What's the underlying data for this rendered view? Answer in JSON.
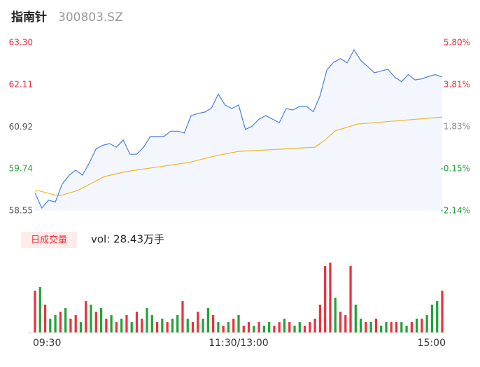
{
  "chart_data": {
    "type": "intraday",
    "title": "指南针",
    "subtitle": "300803.SZ",
    "xlim": [
      0,
      240
    ],
    "xticks": [
      {
        "value": 0,
        "label": "09:30"
      },
      {
        "value": 120,
        "label": "11:30/13:00"
      },
      {
        "value": 240,
        "label": "15:00"
      }
    ],
    "ylim": [
      58.55,
      63.3
    ],
    "yticks": [
      {
        "value": 63.3,
        "label": "63.30"
      },
      {
        "value": 62.11,
        "label": "62.11"
      },
      {
        "value": 60.92,
        "label": "60.92"
      },
      {
        "value": 59.74,
        "label": "59.74"
      },
      {
        "value": 58.55,
        "label": "58.55"
      }
    ],
    "ytick_colors": [
      "#e8323c",
      "#e8323c",
      "#555555",
      "#21a336",
      "#555555"
    ],
    "y2lim": [
      -2.14,
      5.8
    ],
    "y2ticks": [
      {
        "value": 5.8,
        "label": "5.80%"
      },
      {
        "value": 3.81,
        "label": "3.81%"
      },
      {
        "value": 1.83,
        "label": "1.83%"
      },
      {
        "value": -0.15,
        "label": "-0.15%"
      },
      {
        "value": -2.14,
        "label": "-2.14%"
      }
    ],
    "y2tick_colors": [
      "#e8323c",
      "#e8323c",
      "#888888",
      "#21a336",
      "#21a336"
    ],
    "series": [
      {
        "color": "#4a7fe0",
        "fill": "#f3f7fd",
        "x": [
          0,
          4,
          8,
          12,
          16,
          20,
          24,
          28,
          32,
          36,
          40,
          44,
          48,
          52,
          56,
          60,
          64,
          68,
          72,
          76,
          80,
          84,
          88,
          92,
          96,
          100,
          104,
          108,
          112,
          116,
          120,
          124,
          128,
          132,
          136,
          140,
          144,
          148,
          152,
          156,
          160,
          164,
          168,
          172,
          176,
          180,
          184,
          188,
          192,
          196,
          200,
          204,
          208,
          212,
          216,
          220,
          224,
          228,
          232,
          236,
          240
        ],
        "values": [
          59.06,
          58.63,
          58.85,
          58.8,
          59.3,
          59.55,
          59.7,
          59.56,
          59.9,
          60.3,
          60.4,
          60.45,
          60.35,
          60.55,
          60.15,
          60.15,
          60.35,
          60.65,
          60.65,
          60.65,
          60.8,
          60.8,
          60.75,
          61.24,
          61.3,
          61.34,
          61.45,
          61.85,
          61.54,
          61.44,
          61.54,
          60.85,
          60.94,
          61.14,
          61.24,
          61.14,
          61.04,
          61.44,
          61.4,
          61.5,
          61.5,
          61.35,
          61.8,
          62.53,
          62.75,
          62.85,
          62.73,
          63.1,
          62.8,
          62.63,
          62.45,
          62.5,
          62.55,
          62.33,
          62.2,
          62.4,
          62.25,
          62.28,
          62.35,
          62.4,
          62.33
        ]
      },
      {
        "color": "#f0b429",
        "x": [
          0,
          2,
          14,
          25,
          33,
          41,
          54,
          74,
          91,
          107,
          120,
          144,
          165,
          171,
          177,
          190,
          210,
          240
        ],
        "values": [
          59.1,
          59.12,
          58.97,
          59.12,
          59.32,
          59.52,
          59.66,
          59.8,
          59.92,
          60.11,
          60.23,
          60.29,
          60.35,
          60.55,
          60.81,
          61.0,
          61.08,
          61.2
        ]
      }
    ],
    "volume": {
      "label": "日成交量",
      "text": "vol: 28.43万手",
      "ylim": [
        0,
        125
      ],
      "x": [
        0,
        3,
        6,
        9,
        12,
        15,
        18,
        21,
        24,
        27,
        30,
        33,
        36,
        39,
        42,
        45,
        48,
        51,
        54,
        57,
        60,
        63,
        66,
        69,
        72,
        75,
        78,
        81,
        84,
        87,
        90,
        93,
        96,
        99,
        102,
        105,
        108,
        111,
        114,
        117,
        120,
        123,
        126,
        129,
        132,
        135,
        138,
        141,
        144,
        147,
        150,
        153,
        156,
        159,
        162,
        165,
        168,
        171,
        174,
        177,
        180,
        183,
        186,
        189,
        192,
        195,
        198,
        201,
        204,
        207,
        210,
        213,
        216,
        219,
        222,
        225,
        228,
        231,
        234,
        237,
        240
      ],
      "series": [
        {
          "color": "#e8323c",
          "values": [
            60,
            null,
            40,
            null,
            null,
            30,
            null,
            20,
            25,
            null,
            45,
            null,
            30,
            null,
            20,
            null,
            15,
            null,
            25,
            null,
            30,
            20,
            null,
            null,
            15,
            null,
            15,
            null,
            null,
            45,
            null,
            15,
            30,
            null,
            null,
            25,
            null,
            10,
            null,
            20,
            null,
            10,
            15,
            null,
            15,
            null,
            null,
            10,
            15,
            null,
            15,
            null,
            null,
            10,
            15,
            20,
            40,
            95,
            100,
            null,
            30,
            25,
            95,
            null,
            null,
            15,
            null,
            20,
            null,
            null,
            15,
            15,
            null,
            null,
            15,
            null,
            20,
            null,
            null,
            null,
            60
          ]
        },
        {
          "color": "#21a336",
          "values": [
            null,
            65,
            null,
            20,
            25,
            null,
            35,
            null,
            null,
            15,
            null,
            40,
            null,
            35,
            null,
            25,
            null,
            20,
            null,
            15,
            null,
            null,
            35,
            25,
            null,
            20,
            null,
            20,
            25,
            null,
            20,
            null,
            null,
            20,
            35,
            null,
            15,
            null,
            15,
            null,
            25,
            null,
            null,
            10,
            null,
            10,
            15,
            null,
            null,
            20,
            null,
            10,
            15,
            null,
            null,
            null,
            null,
            null,
            null,
            50,
            null,
            null,
            null,
            40,
            20,
            null,
            15,
            null,
            10,
            15,
            null,
            null,
            15,
            10,
            null,
            20,
            null,
            25,
            40,
            45,
            null
          ]
        }
      ]
    }
  }
}
